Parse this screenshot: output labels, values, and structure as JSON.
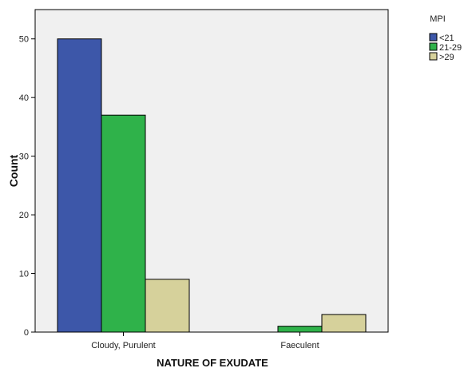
{
  "chart_data": {
    "type": "bar",
    "title": "",
    "xlabel": "NATURE OF EXUDATE",
    "ylabel": "Count",
    "categories": [
      "Cloudy, Purulent",
      "Faeculent"
    ],
    "series": [
      {
        "name": "<21",
        "values": [
          50,
          0
        ],
        "color": "#3d57a9"
      },
      {
        "name": "21-29",
        "values": [
          37,
          1
        ],
        "color": "#2fb24a"
      },
      {
        "name": ">29",
        "values": [
          9,
          3
        ],
        "color": "#d6d19b"
      }
    ],
    "ylim": [
      0,
      55
    ],
    "yticks": [
      0,
      10,
      20,
      30,
      40,
      50
    ],
    "grid": false,
    "legend": {
      "title": "MPI",
      "placement": "top-right"
    },
    "plot_background": "#f0f0f0"
  }
}
